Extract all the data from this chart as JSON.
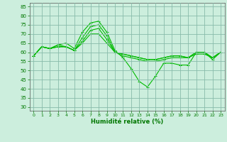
{
  "xlabel": "Humidité relative (%)",
  "background_color": "#cceedd",
  "grid_color": "#88bbaa",
  "line_color": "#00bb00",
  "marker_color": "#00bb00",
  "ylim": [
    28,
    87
  ],
  "xlim": [
    -0.5,
    23.5
  ],
  "yticks": [
    30,
    35,
    40,
    45,
    50,
    55,
    60,
    65,
    70,
    75,
    80,
    85
  ],
  "xticks": [
    0,
    1,
    2,
    3,
    4,
    5,
    6,
    7,
    8,
    9,
    10,
    11,
    12,
    13,
    14,
    15,
    16,
    17,
    18,
    19,
    20,
    21,
    22,
    23
  ],
  "series": [
    [
      58,
      63,
      62,
      64,
      65,
      62,
      71,
      76,
      77,
      71,
      61,
      57,
      51,
      44,
      41,
      47,
      54,
      54,
      53,
      53,
      60,
      60,
      56,
      60
    ],
    [
      58,
      63,
      62,
      64,
      63,
      61,
      68,
      74,
      75,
      69,
      60,
      58,
      57,
      56,
      55,
      55,
      56,
      57,
      57,
      57,
      60,
      60,
      57,
      60
    ],
    [
      58,
      63,
      62,
      63,
      63,
      61,
      66,
      72,
      73,
      67,
      60,
      59,
      58,
      57,
      56,
      56,
      57,
      58,
      58,
      57,
      60,
      60,
      57,
      60
    ],
    [
      58,
      63,
      62,
      63,
      63,
      61,
      65,
      70,
      70,
      65,
      60,
      59,
      58,
      57,
      56,
      56,
      57,
      58,
      58,
      57,
      59,
      59,
      57,
      60
    ]
  ]
}
